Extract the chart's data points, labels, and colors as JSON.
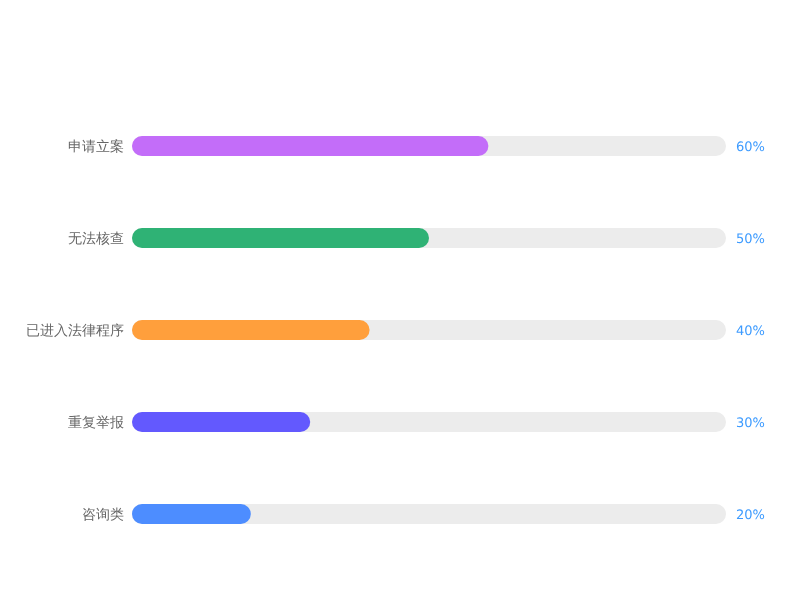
{
  "chart_data": {
    "type": "bar",
    "orientation": "horizontal",
    "categories": [
      "申请立案",
      "无法核查",
      "已进入法律程序",
      "重复举报",
      "咨询类"
    ],
    "values": [
      60,
      50,
      40,
      30,
      20
    ],
    "colors": [
      "#c36df9",
      "#2fb275",
      "#ff9f3c",
      "#6359fe",
      "#4d8dff"
    ],
    "value_labels": [
      "60%",
      "50%",
      "40%",
      "30%",
      "20%"
    ],
    "xlim": [
      0,
      100
    ]
  }
}
